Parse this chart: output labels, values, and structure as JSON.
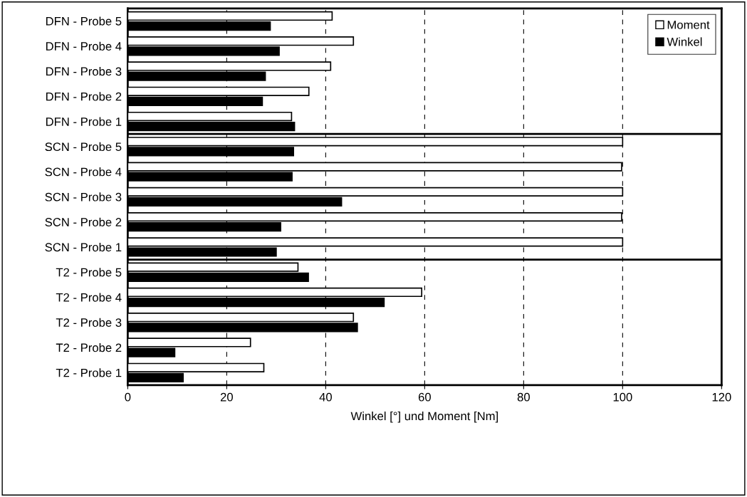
{
  "chart_data": {
    "type": "bar",
    "orientation": "horizontal",
    "xlabel": "Winkel [°] und Moment [Nm]",
    "categories": [
      "DFN - Probe 5",
      "DFN - Probe 4",
      "DFN - Probe 3",
      "DFN - Probe 2",
      "DFN - Probe 1",
      "SCN - Probe 5",
      "SCN - Probe 4",
      "SCN - Probe 3",
      "SCN - Probe 2",
      "SCN - Probe 1",
      "T2 - Probe 5",
      "T2 - Probe 4",
      "T2 - Probe 3",
      "T2 - Probe 2",
      "T2 - Probe 1"
    ],
    "series": [
      {
        "name": "Moment",
        "color": "#ffffff",
        "values": [
          41.3,
          45.6,
          41.0,
          36.6,
          33.1,
          100,
          99.8,
          100,
          99.8,
          100,
          34.4,
          59.4,
          45.6,
          24.8,
          27.5
        ]
      },
      {
        "name": "Winkel",
        "color": "#000000",
        "values": [
          28.8,
          30.6,
          27.8,
          27.2,
          33.7,
          33.5,
          33.2,
          43.2,
          30.9,
          30.0,
          36.5,
          51.8,
          46.4,
          9.5,
          11.2
        ]
      }
    ],
    "xlim": [
      0,
      120
    ],
    "xticks": [
      0,
      20,
      40,
      60,
      80,
      100,
      120
    ],
    "grid": "x",
    "legend": "top right",
    "marker": "square"
  }
}
